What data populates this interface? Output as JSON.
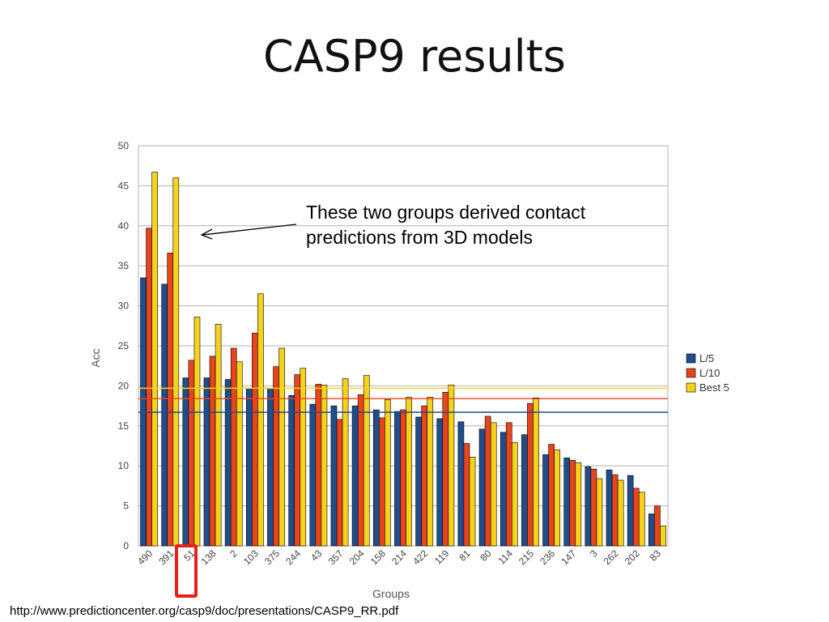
{
  "slide": {
    "title": "CASP9 results",
    "annotation_line1": "These two groups derived contact",
    "annotation_line2": "predictions from 3D models",
    "source": "http://www.predictioncenter.org/casp9/doc/presentations/CASP9_RR.pdf",
    "highlighted_group": "51"
  },
  "chart_data": {
    "type": "bar",
    "xlabel": "Groups",
    "ylabel": "Acc",
    "ylim": [
      0,
      50
    ],
    "yticks": [
      0,
      5,
      10,
      15,
      20,
      25,
      30,
      35,
      40,
      45,
      50
    ],
    "grid": true,
    "legend_position": "right",
    "categories": [
      "490",
      "391",
      "51",
      "138",
      "2",
      "103",
      "375",
      "244",
      "43",
      "357",
      "204",
      "158",
      "214",
      "422",
      "119",
      "81",
      "80",
      "114",
      "215",
      "236",
      "147",
      "3",
      "262",
      "202",
      "83"
    ],
    "series": [
      {
        "name": "L/5",
        "color": "#1f4e8c",
        "values": [
          33.5,
          32.7,
          21.0,
          21.0,
          20.8,
          19.7,
          19.7,
          18.8,
          17.7,
          17.5,
          17.5,
          17.0,
          16.8,
          16.1,
          15.9,
          15.5,
          14.6,
          14.2,
          13.9,
          11.4,
          11.0,
          9.9,
          9.5,
          8.8,
          4.0
        ]
      },
      {
        "name": "L/10",
        "color": "#e8451e",
        "values": [
          39.7,
          36.6,
          23.2,
          23.7,
          24.7,
          26.6,
          22.4,
          21.4,
          20.2,
          15.8,
          18.9,
          16.0,
          17.0,
          17.5,
          19.2,
          12.8,
          16.2,
          15.4,
          17.8,
          12.7,
          10.7,
          9.6,
          8.9,
          7.2,
          5.0
        ]
      },
      {
        "name": "Best 5",
        "color": "#f5d21e",
        "values": [
          46.7,
          46.0,
          28.6,
          27.7,
          23.0,
          31.5,
          24.7,
          22.2,
          20.1,
          20.9,
          21.3,
          18.3,
          18.6,
          18.6,
          20.1,
          11.1,
          15.4,
          12.9,
          18.5,
          12.0,
          10.4,
          8.4,
          8.2,
          6.7,
          2.5
        ]
      }
    ],
    "reference_lines": [
      {
        "series": "L/5",
        "value": 16.7,
        "color": "#1f4e8c"
      },
      {
        "series": "L/10",
        "value": 18.4,
        "color": "#e8451e"
      },
      {
        "series": "Best 5",
        "value": 19.7,
        "color": "#f5d21e"
      }
    ]
  }
}
